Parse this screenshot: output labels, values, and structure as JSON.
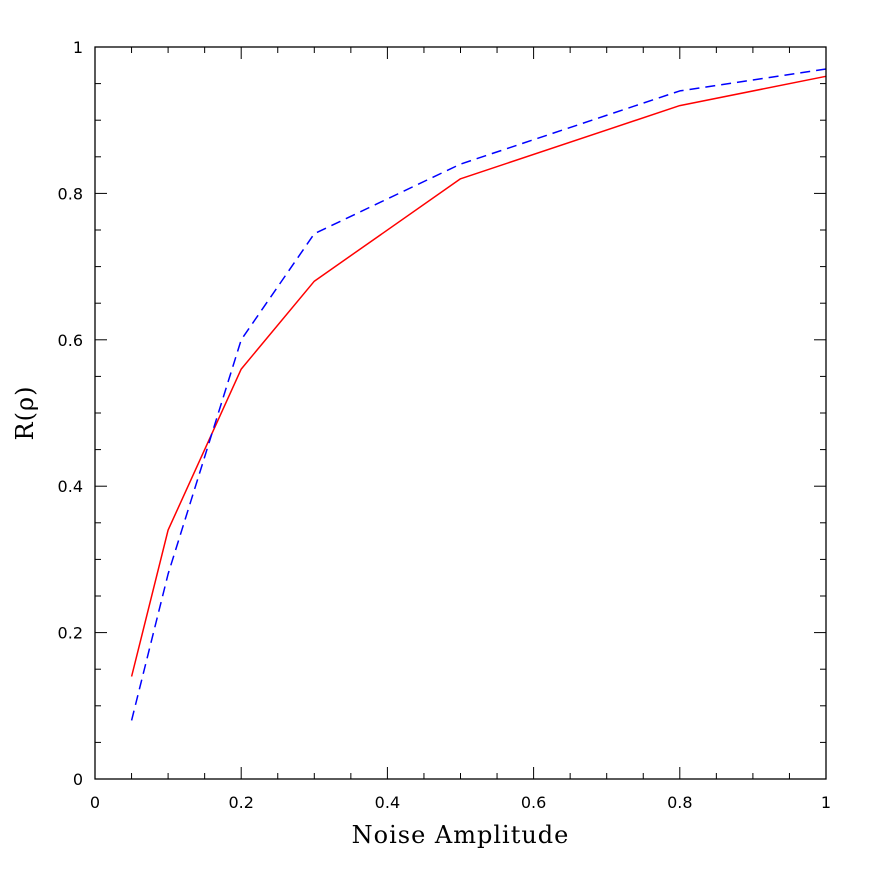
{
  "chart_data": {
    "type": "line",
    "title": "",
    "xlabel": "Noise Amplitude",
    "ylabel": "R(ρ)",
    "xlim": [
      0,
      1
    ],
    "ylim": [
      0,
      1
    ],
    "x_ticks": [
      0,
      0.2,
      0.4,
      0.6,
      0.8,
      1
    ],
    "x_tick_labels": [
      "0",
      "0.2",
      "0.4",
      "0.6",
      "0.8",
      "1"
    ],
    "y_ticks": [
      0,
      0.2,
      0.4,
      0.6,
      0.8,
      1
    ],
    "y_tick_labels": [
      "0",
      "0.2",
      "0.4",
      "0.6",
      "0.8",
      "1"
    ],
    "x_minor_step": 0.05,
    "y_minor_step": 0.05,
    "grid": false,
    "legend": "none",
    "series": [
      {
        "color": "#ff0000",
        "style": "solid",
        "x": [
          0.05,
          0.1,
          0.2,
          0.3,
          0.5,
          0.8,
          1.0
        ],
        "y": [
          0.14,
          0.34,
          0.56,
          0.68,
          0.82,
          0.92,
          0.96
        ]
      },
      {
        "color": "#0000ff",
        "style": "dashed",
        "x": [
          0.05,
          0.1,
          0.2,
          0.3,
          0.5,
          0.8,
          1.0
        ],
        "y": [
          0.08,
          0.28,
          0.6,
          0.745,
          0.84,
          0.94,
          0.97
        ]
      }
    ]
  }
}
